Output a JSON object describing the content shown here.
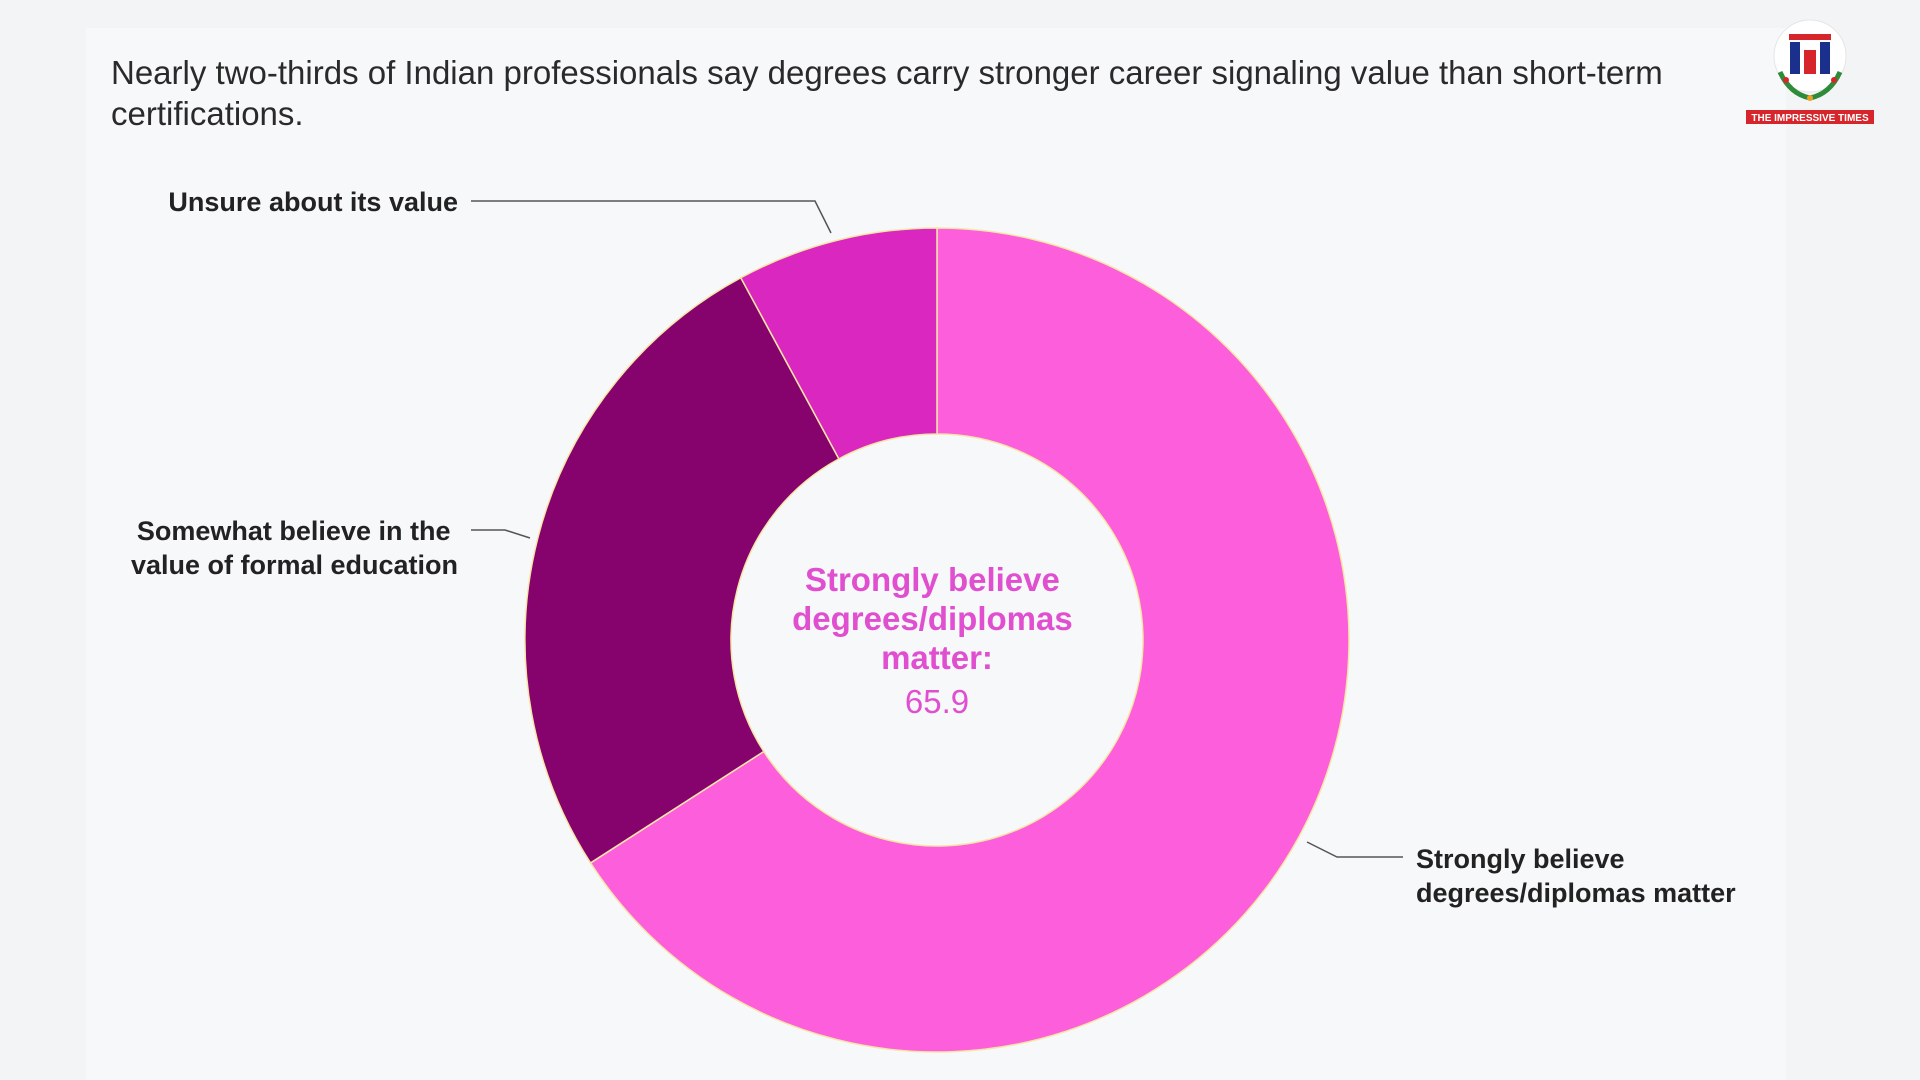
{
  "header": {
    "subtitle": "Nearly two-thirds of Indian professionals say degrees carry stronger career signaling value than short-term certifications."
  },
  "logo": {
    "text": "THE IMPRESSIVE TIMES"
  },
  "chart_data": {
    "type": "pie",
    "donut": true,
    "slices": [
      {
        "label": "Strongly believe degrees/diplomas matter",
        "value": 65.9,
        "color": "#fc5edc"
      },
      {
        "label": "Somewhat believe in the value of formal education",
        "value": 26.2,
        "color": "#86036e"
      },
      {
        "label": "Unsure about its value",
        "value": 7.9,
        "color": "#d927bf"
      }
    ],
    "center": {
      "label": "Strongly believe degrees/diplomas matter:",
      "value": "65.9"
    }
  }
}
